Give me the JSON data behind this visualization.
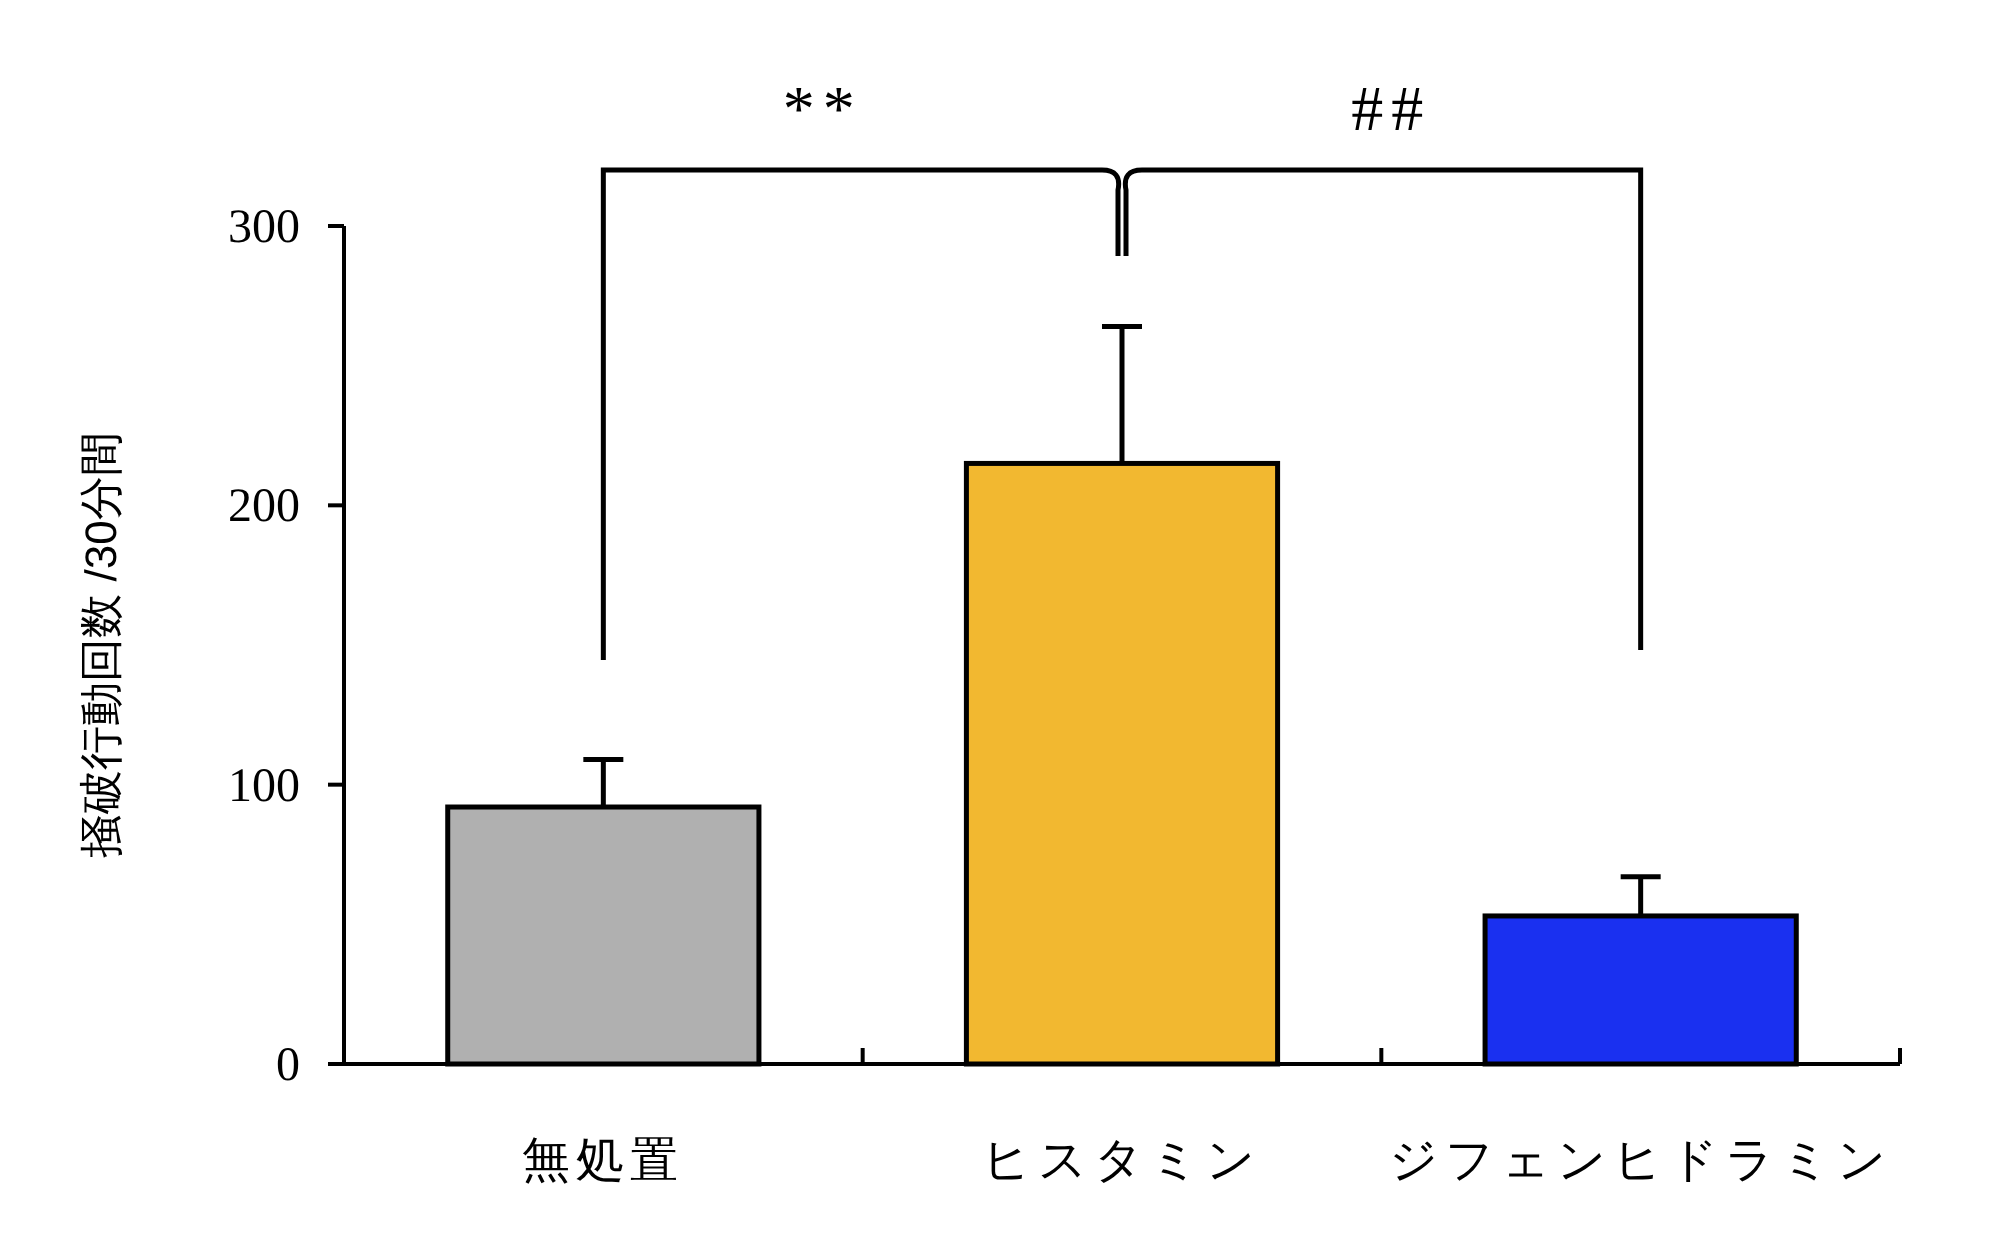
{
  "chart_data": {
    "type": "bar",
    "ylabel": "掻破行動回数 /30分間",
    "categories": [
      "無処置",
      "ヒスタミン",
      "ジフェンヒドラミン"
    ],
    "values": [
      92,
      215,
      53
    ],
    "errors": [
      17,
      49,
      14
    ],
    "colors": [
      "#b0b0b0",
      "#f2b830",
      "#1a30f0"
    ],
    "ylim": [
      0,
      300
    ],
    "yticks": [
      0,
      100,
      200,
      300
    ],
    "grid": false,
    "annotations": [
      "**",
      "##"
    ]
  }
}
